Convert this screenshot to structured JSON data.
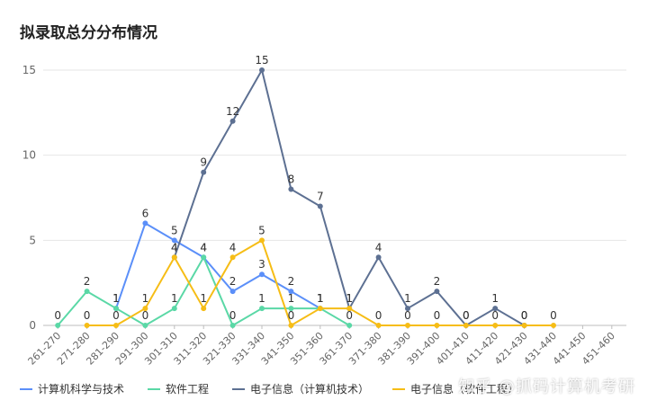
{
  "chart_data": {
    "type": "line",
    "title": "拟录取总分分布情况",
    "xlabel": "",
    "ylabel": "",
    "ylim": [
      0,
      15
    ],
    "yticks": [
      0,
      5,
      10,
      15
    ],
    "grid": true,
    "legend_position": "bottom",
    "categories": [
      "261-270",
      "271-280",
      "281-290",
      "291-300",
      "301-310",
      "311-320",
      "321-330",
      "331-340",
      "341-350",
      "351-360",
      "361-370",
      "371-380",
      "381-390",
      "391-400",
      "401-410",
      "411-420",
      "421-430",
      "431-440",
      "441-450",
      "451-460"
    ],
    "series": [
      {
        "name": "计算机科学与技术",
        "color": "#5b8ff9",
        "values": [
          null,
          null,
          1,
          6,
          5,
          4,
          2,
          3,
          2,
          1,
          null,
          null,
          null,
          null,
          null,
          null,
          null,
          null,
          null,
          null
        ]
      },
      {
        "name": "软件工程",
        "color": "#5ad8a6",
        "values": [
          0,
          2,
          1,
          0,
          1,
          4,
          0,
          1,
          1,
          1,
          0,
          null,
          null,
          null,
          null,
          null,
          null,
          null,
          null,
          null
        ]
      },
      {
        "name": "电子信息（计算机技术）",
        "color": "#5d7092",
        "values": [
          null,
          null,
          null,
          null,
          4,
          9,
          12,
          15,
          8,
          7,
          1,
          4,
          1,
          2,
          0,
          1,
          0,
          null,
          null,
          null
        ]
      },
      {
        "name": "电子信息（软件工程）",
        "color": "#f6bd16",
        "values": [
          null,
          0,
          0,
          1,
          4,
          1,
          4,
          5,
          0,
          1,
          1,
          0,
          0,
          0,
          0,
          0,
          0,
          0,
          null,
          null
        ]
      }
    ]
  },
  "watermark": "知乎 @抓码计算机考研"
}
